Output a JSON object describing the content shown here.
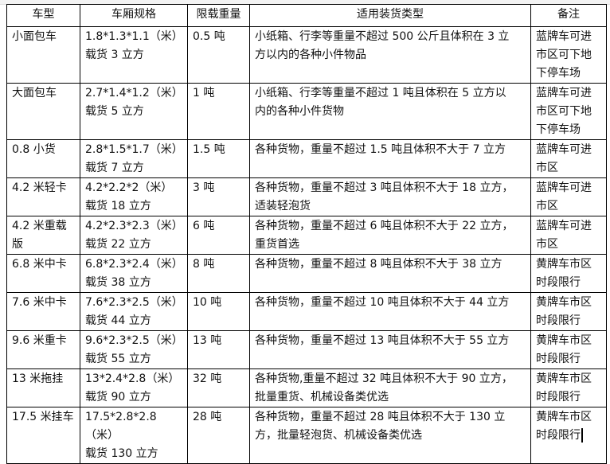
{
  "table": {
    "headers": [
      "车型",
      "车厢规格",
      "限载重量",
      "适用装货类型",
      "备注"
    ],
    "rows": [
      {
        "type": "小面包车",
        "spec": "1.8*1.3*1.1（米）\n载货 3 立方",
        "weight": "0.5 吨",
        "cargo": "小纸箱、行李等重量不超过 500 公斤且体积在 3 立\n方以内的各种小件物品",
        "note": "蓝牌车可进\n市区可下地\n下停车场"
      },
      {
        "type": "大面包车",
        "spec": "2.7*1.4*1.2（米）\n载货 5 立方",
        "weight": "1 吨",
        "cargo": "小纸箱、行李等重量不超过 1 吨且体积在 5 立方以\n内的各种小件货物",
        "note": "蓝牌车可进\n市区可下地\n下停车场"
      },
      {
        "type": "0.8 小货",
        "spec": "2.8*1.5*1.7（米）\n载货 7 立方",
        "weight": "1.5 吨",
        "cargo": "各种货物，重量不超过 1.5 吨且体积不大于 7 立方",
        "note": "蓝牌车可进\n市区"
      },
      {
        "type": "4.2 米轻卡",
        "spec": "4.2*2.2*2（米）\n载货 18 立方",
        "weight": "3 吨",
        "cargo": "各种货物，重量不超过 3 吨且体积不大于 18 立方，\n适装轻泡货",
        "note": "蓝牌车可进\n市区"
      },
      {
        "type": "4.2 米重载\n版",
        "spec": "4.2*2.3*2.3（米）\n载货 22 立方",
        "weight": "6 吨",
        "cargo": "各种货物，重量不超过 6 吨且体积不大于 22 立方，\n重货首选",
        "note": "蓝牌车可进\n市区"
      },
      {
        "type": "6.8 米中卡",
        "spec": "6.8*2.3*2.4（米）\n载货 38 立方",
        "weight": "8 吨",
        "cargo": "各种货物，重量不超过 8 吨且体积不大于 38 立方",
        "note": "黄牌车市区\n时段限行"
      },
      {
        "type": "7.6 米中卡",
        "spec": "7.6*2.3*2.5（米）\n载货 44 立方",
        "weight": "10 吨",
        "cargo": "各种货物，重量不超过 10 吨且体积不大于 44 立方",
        "note": "黄牌车市区\n时段限行"
      },
      {
        "type": "9.6 米重卡",
        "spec": "9.6*2.3*2.5（米）\n载货 55 立方",
        "weight": "13 吨",
        "cargo": "各种货物，重量不超过 13 吨且体积不大于 55 立方",
        "note": "黄牌车市区\n时段限行"
      },
      {
        "type": "13 米拖挂",
        "spec": "13*2.4*2.8（米）\n载货 90 立方",
        "weight": "32 吨",
        "cargo": "各种货物,重量不超过 32 吨且体积不大于 90 立方，\n批量重货、机械设备类优选",
        "note": "黄牌车市区\n时段限行"
      },
      {
        "type": "17.5 米挂车",
        "spec": "17.5*2.8*2.8（米）\n载货 130 立方",
        "weight": "28 吨",
        "cargo": "各种货物，重量不超过 28 吨且体积不大于 130 立\n方，批量轻泡货、机械设备类优选",
        "note": "黄牌车市区\n时段限行"
      }
    ]
  }
}
